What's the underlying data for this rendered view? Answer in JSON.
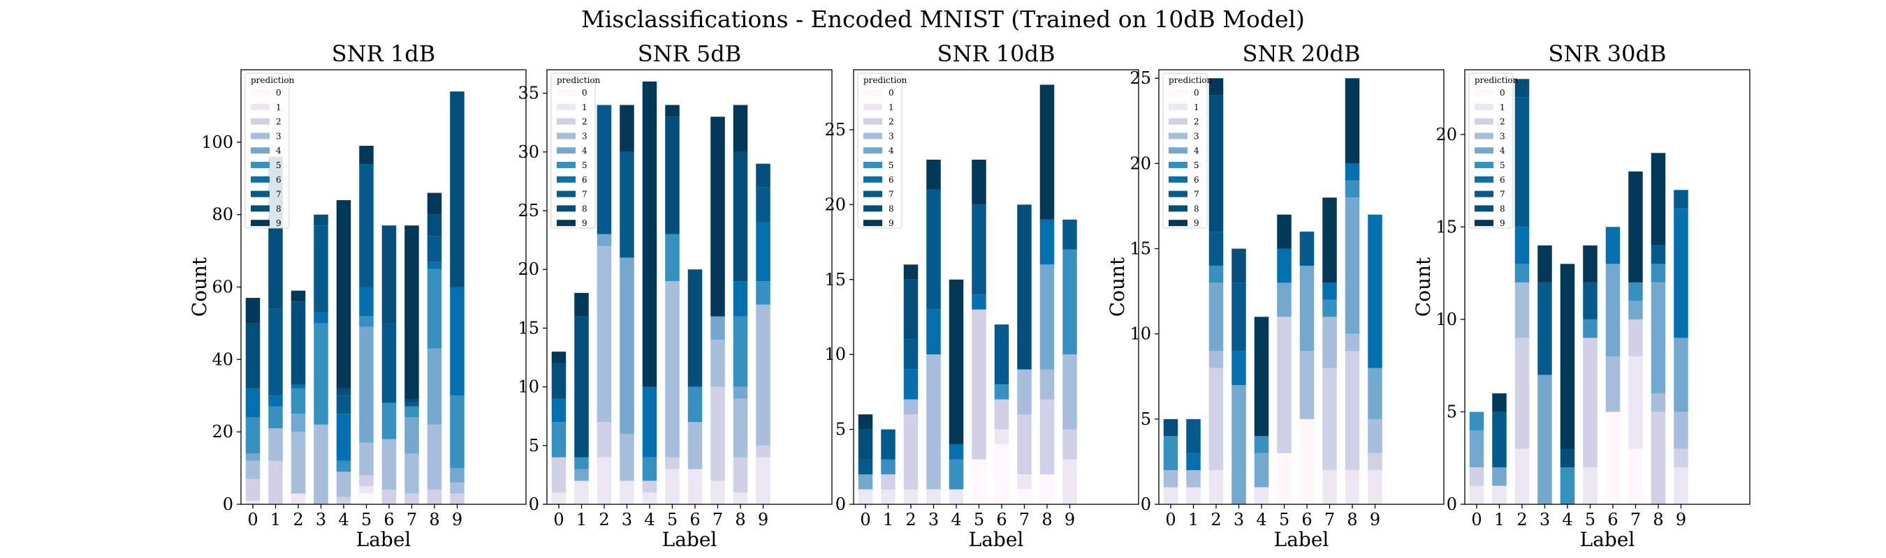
{
  "suptitle": "Misclassifications - Encoded MNIST (Trained on 10dB Model)",
  "legend": {
    "title": "prediction",
    "entries": [
      "0",
      "1",
      "2",
      "3",
      "4",
      "5",
      "6",
      "7",
      "8",
      "9"
    ]
  },
  "colors": [
    "#fff7fb",
    "#ece7f2",
    "#d0d1e6",
    "#a6bddb",
    "#74a9cf",
    "#3690c0",
    "#0570b0",
    "#045a8d",
    "#034e7b",
    "#023858"
  ],
  "chart_data": [
    {
      "type": "bar",
      "stacked": true,
      "title": "SNR 1dB",
      "xlabel": "Label",
      "ylabel": "Count",
      "categories": [
        "0",
        "1",
        "2",
        "3",
        "4",
        "5",
        "6",
        "7",
        "8",
        "9"
      ],
      "ylim": [
        0,
        120
      ],
      "yticks": [
        0,
        20,
        40,
        60,
        80,
        100
      ],
      "series": [
        {
          "name": "0",
          "values": [
            0,
            0,
            0,
            0,
            0,
            3,
            0,
            0,
            0,
            0
          ]
        },
        {
          "name": "1",
          "values": [
            1,
            0,
            3,
            0,
            0,
            2,
            0,
            0,
            0,
            0
          ]
        },
        {
          "name": "2",
          "values": [
            6,
            12,
            0,
            0,
            2,
            3,
            4,
            3,
            4,
            3
          ]
        },
        {
          "name": "3",
          "values": [
            5,
            9,
            17,
            22,
            7,
            9,
            14,
            11,
            18,
            3
          ]
        },
        {
          "name": "4",
          "values": [
            2,
            0,
            5,
            0,
            0,
            32,
            0,
            10,
            21,
            4
          ]
        },
        {
          "name": "5",
          "values": [
            10,
            6,
            7,
            28,
            3,
            3,
            10,
            3,
            22,
            20
          ]
        },
        {
          "name": "6",
          "values": [
            8,
            3,
            1,
            3,
            13,
            8,
            0,
            0,
            2,
            30
          ]
        },
        {
          "name": "7",
          "values": [
            0,
            24,
            0,
            24,
            5,
            34,
            22,
            1,
            7,
            0
          ]
        },
        {
          "name": "8",
          "values": [
            18,
            42,
            23,
            3,
            2,
            0,
            27,
            1,
            6,
            54
          ]
        },
        {
          "name": "9",
          "values": [
            7,
            0,
            3,
            0,
            52,
            5,
            0,
            48,
            6,
            0
          ]
        }
      ]
    },
    {
      "type": "bar",
      "stacked": true,
      "title": "SNR 5dB",
      "xlabel": "Label",
      "ylabel": "",
      "categories": [
        "0",
        "1",
        "2",
        "3",
        "4",
        "5",
        "6",
        "7",
        "8",
        "9"
      ],
      "ylim": [
        0,
        37
      ],
      "yticks": [
        0,
        5,
        10,
        15,
        20,
        25,
        30,
        35
      ],
      "series": [
        {
          "name": "0",
          "values": [
            0,
            0,
            0,
            0,
            0,
            0,
            0,
            0,
            0,
            0
          ]
        },
        {
          "name": "1",
          "values": [
            1,
            2,
            4,
            2,
            1,
            3,
            3,
            2,
            1,
            4
          ]
        },
        {
          "name": "2",
          "values": [
            3,
            0,
            3,
            0,
            1,
            1,
            0,
            8,
            3,
            1
          ]
        },
        {
          "name": "3",
          "values": [
            0,
            0,
            15,
            4,
            0,
            15,
            4,
            4,
            5,
            12
          ]
        },
        {
          "name": "4",
          "values": [
            0,
            1,
            1,
            15,
            0,
            0,
            0,
            2,
            1,
            0
          ]
        },
        {
          "name": "5",
          "values": [
            3,
            1,
            0,
            0,
            2,
            4,
            3,
            0,
            6,
            2
          ]
        },
        {
          "name": "6",
          "values": [
            2,
            0,
            0,
            0,
            6,
            0,
            0,
            0,
            3,
            5
          ]
        },
        {
          "name": "7",
          "values": [
            0,
            0,
            11,
            9,
            0,
            0,
            0,
            0,
            0,
            3
          ]
        },
        {
          "name": "8",
          "values": [
            3,
            12,
            0,
            0,
            0,
            10,
            10,
            0,
            11,
            2
          ]
        },
        {
          "name": "9",
          "values": [
            1,
            2,
            0,
            4,
            26,
            1,
            0,
            17,
            4,
            0
          ]
        }
      ]
    },
    {
      "type": "bar",
      "stacked": true,
      "title": "SNR 10dB",
      "xlabel": "Label",
      "ylabel": "",
      "categories": [
        "0",
        "1",
        "2",
        "3",
        "4",
        "5",
        "6",
        "7",
        "8",
        "9"
      ],
      "ylim": [
        0,
        29
      ],
      "yticks": [
        0,
        5,
        10,
        15,
        20,
        25
      ],
      "series": [
        {
          "name": "0",
          "values": [
            0,
            0,
            0,
            0,
            0,
            3,
            4,
            1,
            2,
            0
          ]
        },
        {
          "name": "1",
          "values": [
            1,
            1,
            1,
            1,
            1,
            0,
            1,
            1,
            0,
            3
          ]
        },
        {
          "name": "2",
          "values": [
            0,
            1,
            5,
            0,
            0,
            10,
            2,
            4,
            5,
            2
          ]
        },
        {
          "name": "3",
          "values": [
            0,
            0,
            1,
            9,
            0,
            0,
            0,
            3,
            2,
            5
          ]
        },
        {
          "name": "4",
          "values": [
            1,
            0,
            0,
            0,
            0,
            0,
            0,
            0,
            7,
            0
          ]
        },
        {
          "name": "5",
          "values": [
            0,
            1,
            0,
            0,
            2,
            0,
            1,
            0,
            0,
            7
          ]
        },
        {
          "name": "6",
          "values": [
            0,
            0,
            2,
            3,
            1,
            1,
            0,
            0,
            3,
            0
          ]
        },
        {
          "name": "7",
          "values": [
            1,
            2,
            2,
            8,
            0,
            6,
            4,
            0,
            0,
            2
          ]
        },
        {
          "name": "8",
          "values": [
            2,
            0,
            4,
            0,
            0,
            0,
            0,
            11,
            0,
            0
          ]
        },
        {
          "name": "9",
          "values": [
            1,
            0,
            1,
            2,
            11,
            3,
            0,
            0,
            9,
            0
          ]
        }
      ]
    },
    {
      "type": "bar",
      "stacked": true,
      "title": "SNR 20dB",
      "xlabel": "Label",
      "ylabel": "Count",
      "categories": [
        "0",
        "1",
        "2",
        "3",
        "4",
        "5",
        "6",
        "7",
        "8",
        "9"
      ],
      "ylim": [
        0,
        25.5
      ],
      "yticks": [
        0,
        5,
        10,
        15,
        20,
        25
      ],
      "series": [
        {
          "name": "0",
          "values": [
            0,
            0,
            0,
            0,
            0,
            3,
            5,
            0,
            0,
            0
          ]
        },
        {
          "name": "1",
          "values": [
            1,
            1,
            2,
            0,
            1,
            0,
            0,
            2,
            2,
            2
          ]
        },
        {
          "name": "2",
          "values": [
            0,
            0,
            6,
            0,
            0,
            8,
            0,
            6,
            7,
            1
          ]
        },
        {
          "name": "3",
          "values": [
            1,
            1,
            1,
            0,
            0,
            0,
            4,
            3,
            1,
            2
          ]
        },
        {
          "name": "4",
          "values": [
            0,
            0,
            4,
            7,
            2,
            2,
            5,
            0,
            8,
            3
          ]
        },
        {
          "name": "5",
          "values": [
            2,
            0,
            1,
            0,
            1,
            0,
            0,
            1,
            1,
            0
          ]
        },
        {
          "name": "6",
          "values": [
            0,
            1,
            0,
            2,
            0,
            2,
            0,
            1,
            1,
            9
          ]
        },
        {
          "name": "7",
          "values": [
            0,
            2,
            2,
            4,
            0,
            0,
            2,
            0,
            0,
            0
          ]
        },
        {
          "name": "8",
          "values": [
            1,
            0,
            8,
            2,
            0,
            0,
            0,
            0,
            0,
            0
          ]
        },
        {
          "name": "9",
          "values": [
            0,
            0,
            1,
            0,
            7,
            2,
            0,
            5,
            5,
            0
          ]
        }
      ]
    },
    {
      "type": "bar",
      "stacked": true,
      "title": "SNR 30dB",
      "xlabel": "Label",
      "ylabel": "Count",
      "categories": [
        "0",
        "1",
        "2",
        "3",
        "4",
        "5",
        "6",
        "7",
        "8",
        "9"
      ],
      "ylim": [
        0,
        23.5
      ],
      "yticks": [
        0,
        5,
        10,
        15,
        20
      ],
      "series": [
        {
          "name": "0",
          "values": [
            0,
            0,
            0,
            0,
            0,
            0,
            5,
            3,
            0,
            0
          ]
        },
        {
          "name": "1",
          "values": [
            1,
            1,
            3,
            0,
            0,
            2,
            0,
            5,
            0,
            2
          ]
        },
        {
          "name": "2",
          "values": [
            1,
            0,
            6,
            0,
            0,
            7,
            0,
            2,
            5,
            1
          ]
        },
        {
          "name": "3",
          "values": [
            0,
            0,
            3,
            0,
            0,
            0,
            3,
            0,
            1,
            2
          ]
        },
        {
          "name": "4",
          "values": [
            2,
            1,
            0,
            7,
            0,
            0,
            5,
            1,
            6,
            4
          ]
        },
        {
          "name": "5",
          "values": [
            1,
            0,
            1,
            0,
            2,
            1,
            0,
            1,
            1,
            0
          ]
        },
        {
          "name": "6",
          "values": [
            0,
            0,
            2,
            0,
            0,
            0,
            2,
            0,
            0,
            7
          ]
        },
        {
          "name": "7",
          "values": [
            0,
            3,
            7,
            5,
            0,
            2,
            0,
            0,
            1,
            1
          ]
        },
        {
          "name": "8",
          "values": [
            0,
            0,
            1,
            0,
            1,
            0,
            0,
            0,
            0,
            0
          ]
        },
        {
          "name": "9",
          "values": [
            0,
            1,
            0,
            2,
            10,
            2,
            0,
            6,
            5,
            0
          ]
        }
      ]
    }
  ]
}
